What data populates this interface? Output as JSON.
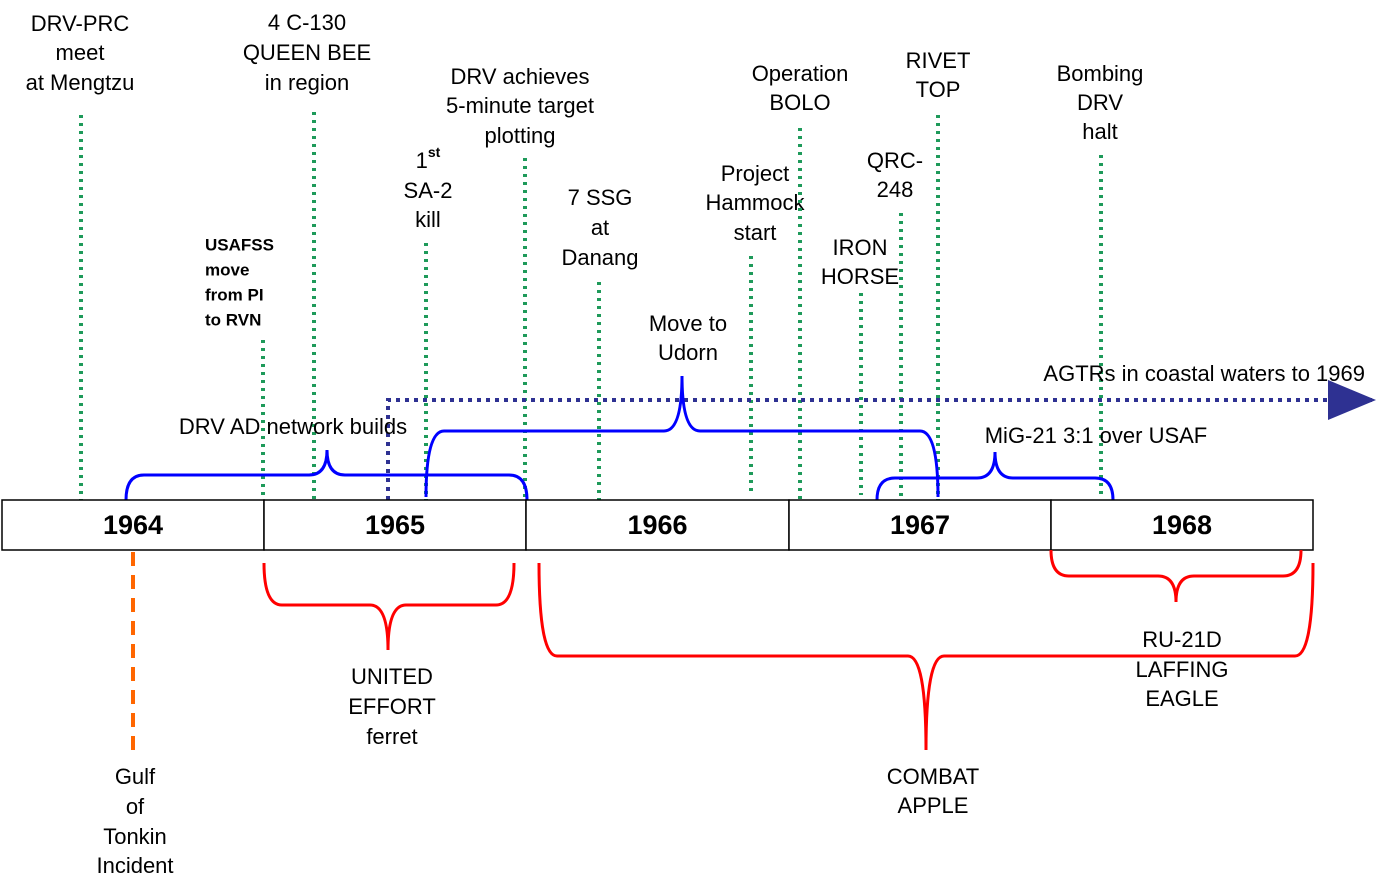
{
  "years": [
    "1964",
    "1965",
    "1966",
    "1967",
    "1968"
  ],
  "events": [
    {
      "lines": [
        "DRV-PRC",
        "meet",
        "at Mengtzu"
      ]
    },
    {
      "lines": [
        "4 C-130",
        "QUEEN BEE",
        "in region"
      ]
    },
    {
      "lines": [
        "USAFSS",
        "move",
        "from PI",
        "to RVN"
      ]
    },
    {
      "lines": [
        {
          "text": "1",
          "sup": "st"
        },
        "SA-2",
        "kill"
      ]
    },
    {
      "lines": [
        "DRV achieves",
        "5-minute target",
        "plotting"
      ]
    },
    {
      "lines": [
        "7 SSG",
        "at",
        "Danang"
      ]
    },
    {
      "lines": [
        "Project",
        "Hammock",
        "start"
      ]
    },
    {
      "lines": [
        "Operation",
        "BOLO"
      ]
    },
    {
      "lines": [
        "IRON",
        "HORSE"
      ]
    },
    {
      "lines": [
        "QRC-",
        "248"
      ]
    },
    {
      "lines": [
        "RIVET",
        "TOP"
      ]
    },
    {
      "lines": [
        "Bombing",
        "DRV",
        "halt"
      ]
    }
  ],
  "blue_braces": [
    {
      "lines": [
        "DRV AD network builds"
      ]
    },
    {
      "lines": [
        "Move to",
        "Udorn"
      ]
    },
    {
      "lines": [
        "MiG-21 3:1 over USAF"
      ]
    }
  ],
  "arrow": {
    "label": "AGTRs in coastal waters to 1969"
  },
  "red_braces": [
    {
      "lines": [
        "UNITED",
        "EFFORT",
        "ferret"
      ]
    },
    {
      "lines": [
        "COMBAT",
        "APPLE"
      ]
    },
    {
      "lines": [
        "RU-21D",
        "LAFFING",
        "EAGLE"
      ]
    }
  ],
  "incident": {
    "lines": [
      "Gulf",
      "of",
      "Tonkin",
      "Incident"
    ]
  }
}
